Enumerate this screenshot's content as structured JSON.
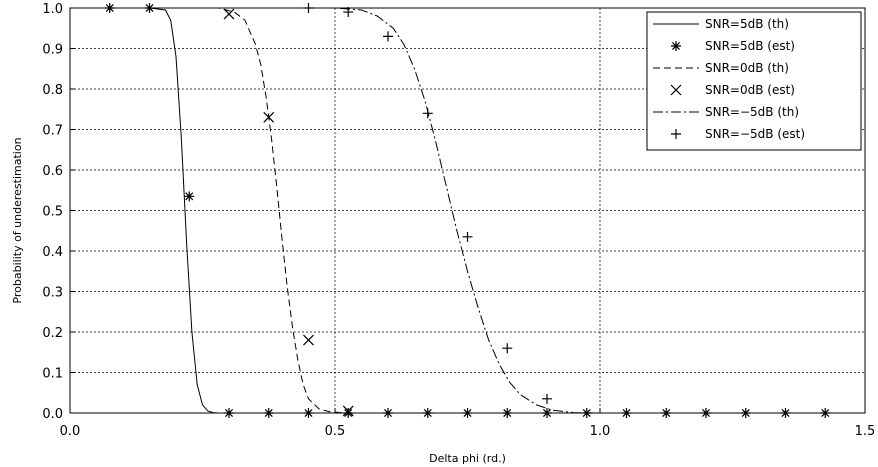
{
  "chart_data": {
    "type": "line",
    "title": "",
    "xlabel": "Delta phi (rd.)",
    "ylabel": "Probability of underestimation",
    "xlim": [
      0.0,
      1.5
    ],
    "ylim": [
      0.0,
      1.0
    ],
    "x_ticks": [
      0.0,
      0.5,
      1.0,
      1.5
    ],
    "x_tick_labels": [
      "0.0",
      "0.5",
      "1.0",
      "1.5"
    ],
    "y_ticks": [
      0.0,
      0.1,
      0.2,
      0.3,
      0.4,
      0.5,
      0.6,
      0.7,
      0.8,
      0.9,
      1.0
    ],
    "y_tick_labels": [
      "0.0",
      "0.1",
      "0.2",
      "0.3",
      "0.4",
      "0.5",
      "0.6",
      "0.7",
      "0.8",
      "0.9",
      "1.0"
    ],
    "grid": true,
    "legend_position": "top-right",
    "series": [
      {
        "name": "SNR=5dB (th)",
        "style": "solid",
        "marker": "none",
        "x": [
          0.0,
          0.15,
          0.18,
          0.19,
          0.2,
          0.21,
          0.22,
          0.23,
          0.24,
          0.25,
          0.26,
          0.27,
          0.28,
          0.3,
          1.5
        ],
        "y": [
          1.0,
          1.0,
          0.995,
          0.97,
          0.88,
          0.68,
          0.42,
          0.2,
          0.07,
          0.02,
          0.005,
          0.001,
          0.0,
          0.0,
          0.0
        ]
      },
      {
        "name": "SNR=5dB (est)",
        "style": "none",
        "marker": "asterisk",
        "x": [
          0.075,
          0.15,
          0.225,
          0.3,
          0.375,
          0.45,
          0.525,
          0.6,
          0.675,
          0.75,
          0.825,
          0.9,
          0.975,
          1.05,
          1.125,
          1.2,
          1.275,
          1.35,
          1.425
        ],
        "y": [
          1.0,
          1.0,
          0.535,
          0.0,
          0.0,
          0.0,
          0.0,
          0.0,
          0.0,
          0.0,
          0.0,
          0.0,
          0.0,
          0.0,
          0.0,
          0.0,
          0.0,
          0.0,
          0.0
        ]
      },
      {
        "name": "SNR=0dB (th)",
        "style": "dashed",
        "marker": "none",
        "x": [
          0.0,
          0.28,
          0.31,
          0.33,
          0.35,
          0.36,
          0.37,
          0.38,
          0.39,
          0.4,
          0.41,
          0.42,
          0.43,
          0.44,
          0.45,
          0.47,
          0.49,
          0.52,
          1.5
        ],
        "y": [
          1.0,
          1.0,
          0.99,
          0.97,
          0.91,
          0.86,
          0.78,
          0.68,
          0.56,
          0.43,
          0.31,
          0.21,
          0.13,
          0.07,
          0.035,
          0.01,
          0.003,
          0.0,
          0.0
        ]
      },
      {
        "name": "SNR=0dB (est)",
        "style": "none",
        "marker": "x",
        "x": [
          0.3,
          0.375,
          0.45,
          0.525
        ],
        "y": [
          0.985,
          0.73,
          0.18,
          0.005
        ]
      },
      {
        "name": "SNR=−5dB (th)",
        "style": "dashdot",
        "marker": "none",
        "x": [
          0.0,
          0.5,
          0.55,
          0.58,
          0.61,
          0.63,
          0.65,
          0.67,
          0.69,
          0.71,
          0.73,
          0.75,
          0.77,
          0.79,
          0.81,
          0.83,
          0.85,
          0.88,
          0.91,
          0.95,
          1.0,
          1.5
        ],
        "y": [
          1.0,
          1.0,
          0.995,
          0.98,
          0.95,
          0.91,
          0.85,
          0.77,
          0.67,
          0.56,
          0.45,
          0.35,
          0.26,
          0.18,
          0.12,
          0.075,
          0.045,
          0.02,
          0.007,
          0.001,
          0.0,
          0.0
        ]
      },
      {
        "name": "SNR=−5dB (est)",
        "style": "none",
        "marker": "plus",
        "x": [
          0.45,
          0.525,
          0.6,
          0.675,
          0.75,
          0.825,
          0.9
        ],
        "y": [
          1.0,
          0.99,
          0.93,
          0.74,
          0.435,
          0.16,
          0.035
        ]
      }
    ]
  }
}
